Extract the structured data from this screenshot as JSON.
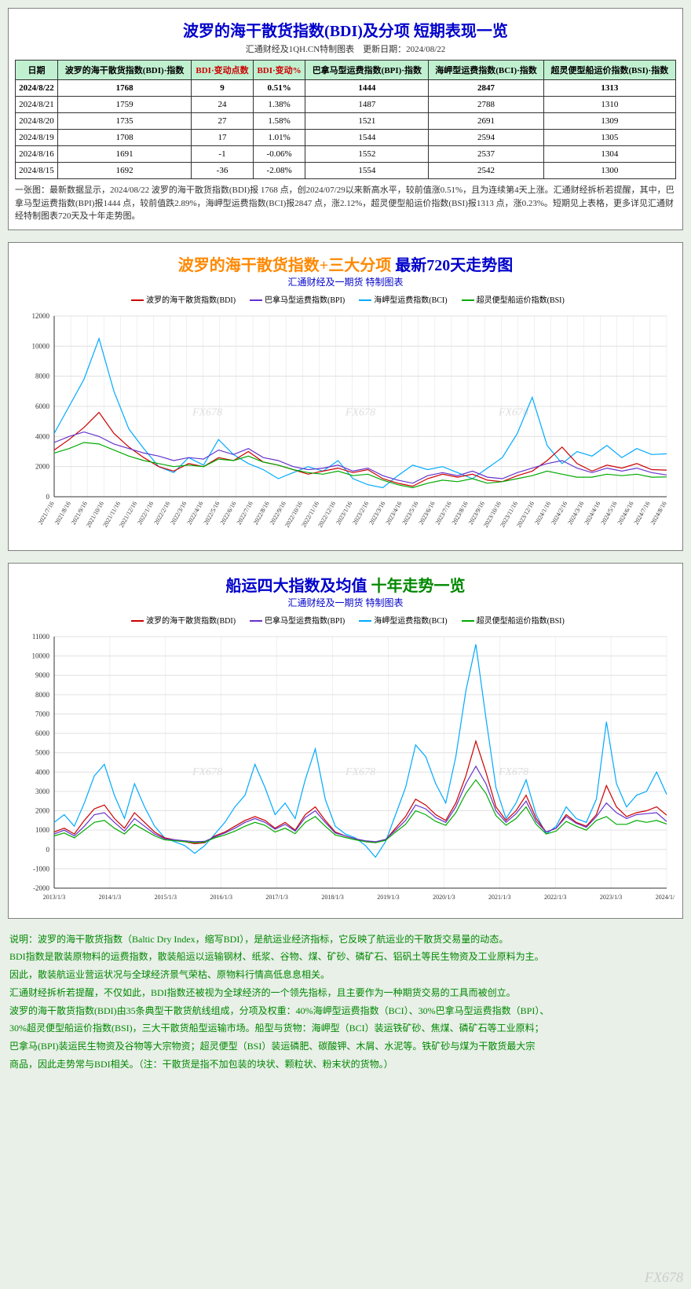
{
  "panel1": {
    "title": "波罗的海干散货指数(BDI)及分项 短期表现一览",
    "subtitle": "汇通财经及1QH.CN特制图表　更新日期：2024/08/22",
    "columns": [
      {
        "label": "日期",
        "red": false
      },
      {
        "label": "波罗的海干散货指数(BDI)·指数",
        "red": false
      },
      {
        "label": "BDI·变动点数",
        "red": true
      },
      {
        "label": "BDI·变动%",
        "red": true
      },
      {
        "label": "巴拿马型运费指数(BPI)·指数",
        "red": false
      },
      {
        "label": "海岬型运费指数(BCI)·指数",
        "red": false
      },
      {
        "label": "超灵便型船运价指数(BSI)·指数",
        "red": false
      }
    ],
    "rows": [
      {
        "highlight": true,
        "cells": [
          "2024/8/22",
          "1768",
          "9",
          "0.51%",
          "1444",
          "2847",
          "1313"
        ]
      },
      {
        "highlight": false,
        "cells": [
          "2024/8/21",
          "1759",
          "24",
          "1.38%",
          "1487",
          "2788",
          "1310"
        ]
      },
      {
        "highlight": false,
        "cells": [
          "2024/8/20",
          "1735",
          "27",
          "1.58%",
          "1521",
          "2691",
          "1309"
        ]
      },
      {
        "highlight": false,
        "cells": [
          "2024/8/19",
          "1708",
          "17",
          "1.01%",
          "1544",
          "2594",
          "1305"
        ]
      },
      {
        "highlight": false,
        "cells": [
          "2024/8/16",
          "1691",
          "-1",
          "-0.06%",
          "1552",
          "2537",
          "1304"
        ]
      },
      {
        "highlight": false,
        "cells": [
          "2024/8/15",
          "1692",
          "-36",
          "-2.08%",
          "1554",
          "2542",
          "1300"
        ]
      }
    ],
    "footnote": "一张图：最新数据显示，2024/08/22 波罗的海干散货指数(BDI)报 1768 点，创2024/07/29以来新高水平，较前值涨0.51%，且为连续第4天上涨。汇通财经拆析若提醒，其中，巴拿马型运费指数(BPI)报1444 点，较前值跌2.89%，海岬型运费指数(BCI)报2847 点，涨2.12%，超灵便型船运价指数(BSI)报1313 点，涨0.23%。短期见上表格，更多详见汇通财经特制图表720天及十年走势图。"
  },
  "chart1": {
    "title_parts": [
      {
        "text": "波罗的海干散货指数+三大分项 ",
        "cls": "orange"
      },
      {
        "text": "最新720天走势图",
        "cls": "blue"
      }
    ],
    "subtitle": "汇通财经及一期货 特制图表",
    "series": [
      {
        "name": "波罗的海干散货指数(BDI)",
        "color": "#cc0000"
      },
      {
        "name": "巴拿马型运费指数(BPI)",
        "color": "#6633cc"
      },
      {
        "name": "海岬型运费指数(BCI)",
        "color": "#00aaff"
      },
      {
        "name": "超灵便型船运价指数(BSI)",
        "color": "#00aa00"
      }
    ],
    "ylim": [
      0,
      12000
    ],
    "ytick_step": 2000,
    "yticks": [
      0,
      2000,
      4000,
      6000,
      8000,
      10000,
      12000
    ],
    "xlabels": [
      "2021/7/16",
      "2021/8/16",
      "2021/9/16",
      "2021/10/16",
      "2021/11/16",
      "2021/12/16",
      "2022/1/16",
      "2022/2/16",
      "2022/3/16",
      "2022/4/16",
      "2022/5/16",
      "2022/6/16",
      "2022/7/16",
      "2022/8/16",
      "2022/9/16",
      "2022/10/16",
      "2022/11/16",
      "2022/12/16",
      "2023/1/16",
      "2023/2/16",
      "2023/3/16",
      "2023/4/16",
      "2023/5/16",
      "2023/6/16",
      "2023/7/16",
      "2023/8/16",
      "2023/9/16",
      "2023/10/16",
      "2023/11/16",
      "2023/12/16",
      "2024/1/16",
      "2024/2/16",
      "2024/3/16",
      "2024/4/16",
      "2024/5/16",
      "2024/6/16",
      "2024/7/16",
      "2024/8/16"
    ],
    "background_color": "#ffffff",
    "grid_color": "#e0e0e0",
    "watermark": "FX678",
    "data": {
      "bci": [
        4200,
        6000,
        7800,
        10500,
        7000,
        4500,
        3200,
        2000,
        1600,
        2600,
        2100,
        3800,
        2800,
        2200,
        1800,
        1200,
        1600,
        2000,
        1700,
        2400,
        1200,
        800,
        600,
        1400,
        2100,
        1800,
        2000,
        1600,
        1200,
        1900,
        2600,
        4200,
        6600,
        3400,
        2200,
        3000,
        2700,
        3400,
        2600,
        3200,
        2800,
        2847
      ],
      "bdi": [
        3100,
        3800,
        4600,
        5600,
        4200,
        3300,
        2600,
        2000,
        1700,
        2200,
        2000,
        2600,
        2400,
        3000,
        2300,
        2100,
        1800,
        1500,
        1700,
        1900,
        1600,
        1800,
        1200,
        900,
        700,
        1200,
        1500,
        1300,
        1500,
        1100,
        1000,
        1400,
        1700,
        2400,
        3300,
        2200,
        1700,
        2100,
        1900,
        2200,
        1800,
        1768
      ],
      "bpi": [
        3600,
        4000,
        4300,
        4000,
        3500,
        3200,
        2900,
        2700,
        2400,
        2600,
        2500,
        3100,
        2800,
        3200,
        2600,
        2400,
        2000,
        1800,
        1900,
        2100,
        1700,
        1900,
        1400,
        1100,
        900,
        1400,
        1600,
        1400,
        1700,
        1300,
        1200,
        1600,
        1900,
        2200,
        2400,
        1900,
        1600,
        1900,
        1700,
        1900,
        1600,
        1444
      ],
      "bsi": [
        2900,
        3200,
        3600,
        3500,
        3100,
        2700,
        2400,
        2200,
        2000,
        2100,
        2000,
        2500,
        2400,
        2700,
        2300,
        2100,
        1800,
        1600,
        1500,
        1700,
        1400,
        1500,
        1100,
        800,
        600,
        900,
        1100,
        1000,
        1200,
        900,
        1000,
        1200,
        1400,
        1700,
        1500,
        1300,
        1300,
        1500,
        1400,
        1500,
        1300,
        1313
      ]
    }
  },
  "chart2": {
    "title_parts": [
      {
        "text": "船运四大指数及均值 ",
        "cls": "blue"
      },
      {
        "text": "十年走势一览",
        "cls": "green"
      }
    ],
    "subtitle": "汇通财经及一期货 特制图表",
    "series": [
      {
        "name": "波罗的海干散货指数(BDI)",
        "color": "#cc0000"
      },
      {
        "name": "巴拿马型运费指数(BPI)",
        "color": "#6633cc"
      },
      {
        "name": "海岬型运费指数(BCI)",
        "color": "#00aaff"
      },
      {
        "name": "超灵便型船运价指数(BSI)",
        "color": "#00aa00"
      }
    ],
    "ylim": [
      -2000,
      11000
    ],
    "ytick_step": 1000,
    "yticks": [
      -2000,
      -1000,
      0,
      1000,
      2000,
      3000,
      4000,
      5000,
      6000,
      7000,
      8000,
      9000,
      10000,
      11000
    ],
    "xlabels": [
      "2013/1/3",
      "2014/1/3",
      "2015/1/3",
      "2016/1/3",
      "2017/1/3",
      "2018/1/3",
      "2019/1/3",
      "2020/1/3",
      "2021/1/3",
      "2022/1/3",
      "2023/1/3",
      "2024/1/3"
    ],
    "background_color": "#ffffff",
    "grid_color": "#e0e0e0",
    "watermark": "FX678",
    "data": {
      "bci": [
        1400,
        1800,
        1200,
        2400,
        3800,
        4400,
        2800,
        1600,
        3400,
        2200,
        1200,
        600,
        400,
        200,
        -200,
        200,
        800,
        1400,
        2200,
        2800,
        4400,
        3200,
        1800,
        2400,
        1600,
        3600,
        5200,
        2600,
        1200,
        800,
        600,
        200,
        -400,
        400,
        1800,
        3200,
        5400,
        4800,
        3400,
        2400,
        4800,
        8200,
        10600,
        6800,
        3200,
        1600,
        2400,
        3600,
        1800,
        800,
        1200,
        2200,
        1600,
        1400,
        2600,
        6600,
        3400,
        2200,
        2800,
        3000,
        4000,
        2847
      ],
      "bdi": [
        900,
        1100,
        800,
        1500,
        2100,
        2300,
        1600,
        1100,
        1900,
        1400,
        900,
        600,
        500,
        400,
        300,
        350,
        700,
        900,
        1200,
        1500,
        1700,
        1500,
        1100,
        1400,
        1000,
        1800,
        2200,
        1500,
        900,
        700,
        550,
        400,
        350,
        500,
        1100,
        1700,
        2600,
        2300,
        1800,
        1500,
        2400,
        3800,
        5600,
        4000,
        2200,
        1500,
        2000,
        2800,
        1600,
        900,
        1100,
        1800,
        1400,
        1200,
        1800,
        3300,
        2200,
        1700,
        1900,
        2000,
        2200,
        1768
      ],
      "bpi": [
        800,
        1000,
        700,
        1200,
        1800,
        1900,
        1400,
        950,
        1600,
        1200,
        800,
        550,
        500,
        450,
        400,
        420,
        650,
        850,
        1100,
        1400,
        1600,
        1400,
        1050,
        1300,
        950,
        1650,
        2000,
        1400,
        850,
        700,
        550,
        450,
        400,
        520,
        1000,
        1500,
        2300,
        2100,
        1650,
        1400,
        2200,
        3400,
        4300,
        3400,
        2000,
        1400,
        1850,
        2500,
        1450,
        900,
        1100,
        1700,
        1350,
        1150,
        1700,
        2400,
        1900,
        1600,
        1800,
        1850,
        1900,
        1444
      ],
      "bsi": [
        700,
        850,
        600,
        1000,
        1400,
        1500,
        1100,
        800,
        1300,
        1000,
        700,
        500,
        450,
        400,
        350,
        380,
        600,
        750,
        950,
        1200,
        1400,
        1250,
        900,
        1100,
        820,
        1400,
        1700,
        1200,
        750,
        620,
        500,
        400,
        350,
        470,
        900,
        1300,
        2000,
        1800,
        1450,
        1250,
        1900,
        2900,
        3600,
        2900,
        1750,
        1250,
        1600,
        2200,
        1300,
        800,
        950,
        1450,
        1200,
        1000,
        1500,
        1700,
        1300,
        1300,
        1500,
        1400,
        1500,
        1313
      ]
    }
  },
  "explanation": [
    "说明：波罗的海干散货指数（Baltic Dry Index，缩写BDI），是航运业经济指标，它反映了航运业的干散货交易量的动态。",
    "BDI指数是散装原物料的运费指数，散装船运以运输钢材、纸浆、谷物、煤、矿砂、磷矿石、铝矾土等民生物资及工业原料为主。",
    "因此，散装航运业营运状况与全球经济景气荣枯、原物料行情高低息息相关。",
    "汇通财经拆析若提醒，不仅如此，BDI指数还被视为全球经济的一个领先指标，且主要作为一种期货交易的工具而被创立。",
    "波罗的海干散货指数(BDI)由35条典型干散货航线组成，分项及权重：40%海岬型运费指数（BCI）、30%巴拿马型运费指数（BPI）、",
    "30%超灵便型船运价指数(BSI)，三大干散货船型运输市场。船型与货物：海岬型（BCI）装运铁矿砂、焦煤、磷矿石等工业原料；",
    "巴拿马(BPI)装运民生物资及谷物等大宗物资；超灵便型（BSI）装运磷肥、碳酸钾、木屑、水泥等。铁矿砂与煤为干散货最大宗",
    "商品，因此走势常与BDI相关。（注：干散货是指不加包装的块状、颗粒状、粉末状的货物。）"
  ],
  "page_watermark": "FX678"
}
